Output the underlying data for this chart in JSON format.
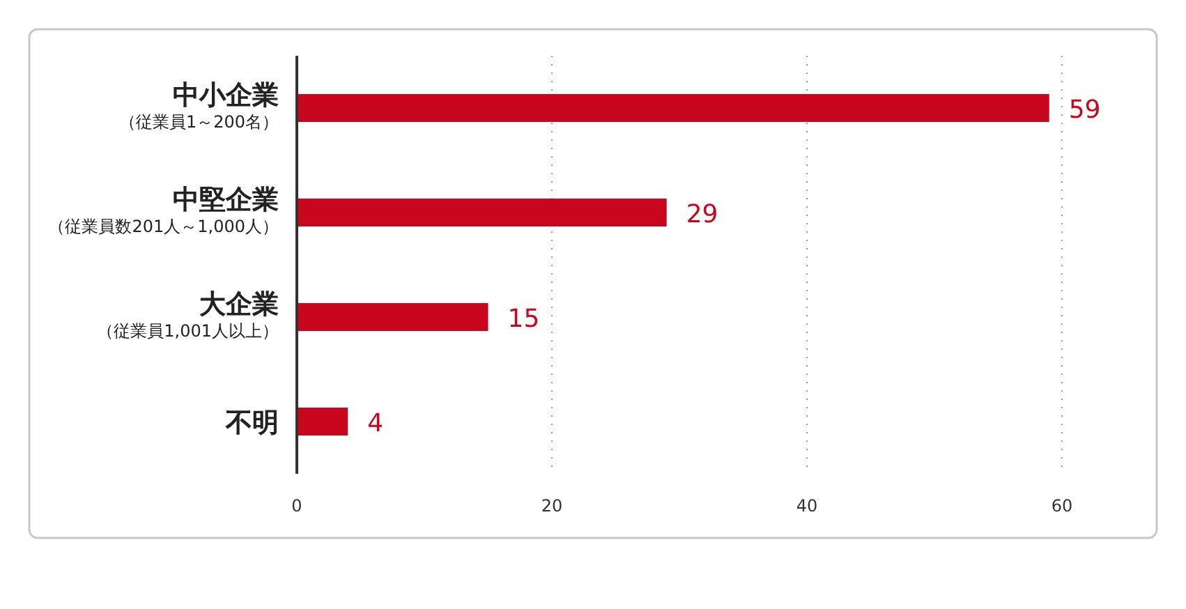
{
  "chart_data": {
    "type": "bar",
    "orientation": "horizontal",
    "categories": [
      "中小企業（従業員1～200名）",
      "中堅企業（従業員数201人～1,000人）",
      "大企業（従業員1,001人以上）",
      "不明"
    ],
    "values": [
      59,
      29,
      15,
      4
    ],
    "color": "#c8071e",
    "data_labels": true,
    "xlim": [
      0,
      60
    ],
    "xticks": [
      0,
      20,
      40,
      60
    ],
    "grid": "x"
  }
}
